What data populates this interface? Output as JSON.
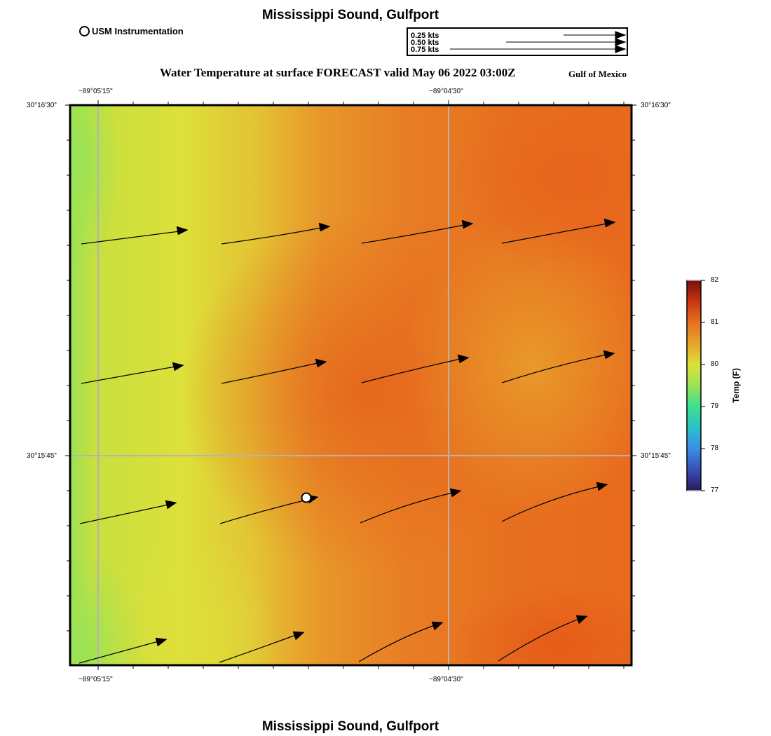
{
  "header": {
    "title_top": "Mississippi Sound, Gulfport",
    "title_bottom": "Mississippi Sound, Gulfport",
    "subtitle": "Water Temperature at surface FORECAST valid May 06 2022 03:00Z",
    "region": "Gulf of Mexico"
  },
  "legend": {
    "usm_label": "USM Instrumentation",
    "vector_scale": [
      "0.25 kts",
      "0.50 kts",
      "0.75 kts"
    ]
  },
  "map": {
    "lon_labels_top": [
      "−89°05'15\"",
      "−89°04'30\""
    ],
    "lon_labels_bottom": [
      "−89°05'15\"",
      "−89°04'30\""
    ],
    "lat_labels_left": [
      "30°16'30\"",
      "30°15'45\""
    ],
    "lat_labels_right": [
      "30°16'30\"",
      "30°15'45\""
    ],
    "station": {
      "name": "USM Instrumentation"
    }
  },
  "colorbar": {
    "title": "Temp (F)",
    "ticks": [
      "82",
      "81",
      "80",
      "79",
      "78",
      "77"
    ],
    "min": 77,
    "max": 82
  },
  "colors": {
    "green": "#98e255",
    "yellow_green": "#c8e03e",
    "yellow": "#dfe03a",
    "gold": "#e7b22c",
    "orange": "#e8902a",
    "deep_orange": "#e66c1f",
    "red_orange": "#e8601b"
  }
}
